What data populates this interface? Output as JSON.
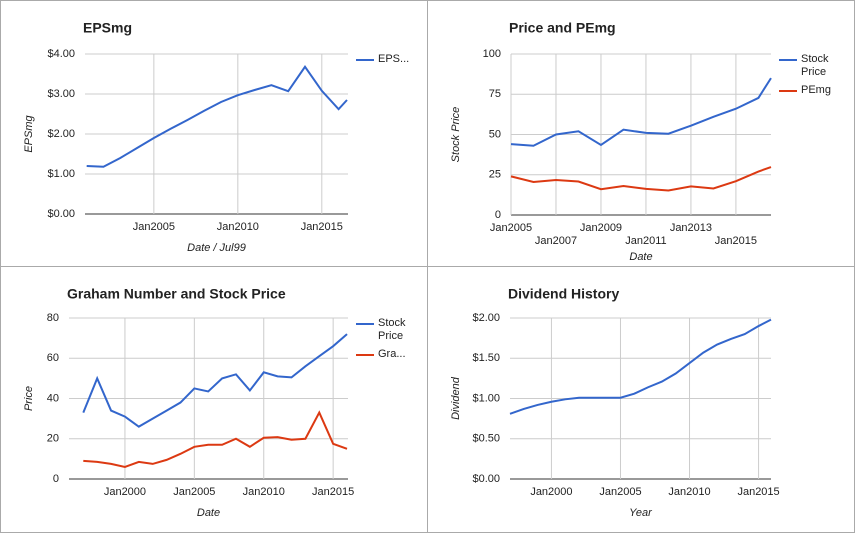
{
  "chart_data": [
    {
      "type": "line",
      "title": "EPSmg",
      "x_label": "Date / Jul99",
      "y_label": "EPSmg",
      "x": [
        2001,
        2002,
        2003,
        2004,
        2005,
        2006,
        2007,
        2008,
        2009,
        2010,
        2011,
        2012,
        2013,
        2014,
        2015,
        2016,
        2016.5
      ],
      "series": [
        {
          "name": "EPS...",
          "color": "#3366cc",
          "values": [
            1.2,
            1.18,
            1.4,
            1.65,
            1.9,
            2.13,
            2.35,
            2.58,
            2.8,
            2.97,
            3.1,
            3.22,
            3.07,
            3.68,
            3.08,
            2.62,
            2.85
          ]
        }
      ],
      "xlim": [
        2000.9,
        2016.56
      ],
      "ylim": [
        0,
        4
      ],
      "xticks": [
        {
          "value": 2005,
          "label": "Jan2005"
        },
        {
          "value": 2010,
          "label": "Jan2010"
        },
        {
          "value": 2015,
          "label": "Jan2015"
        }
      ],
      "yticks": [
        {
          "value": 0,
          "label": "$0.00"
        },
        {
          "value": 1,
          "label": "$1.00"
        },
        {
          "value": 2,
          "label": "$2.00"
        },
        {
          "value": 3,
          "label": "$3.00"
        },
        {
          "value": 4,
          "label": "$4.00"
        }
      ],
      "grid": true,
      "legend": "right"
    },
    {
      "type": "line",
      "title": "Price and PEmg",
      "x_label": "Date",
      "y_label": "Stock Price",
      "x": [
        2005,
        2006,
        2007,
        2008,
        2009,
        2010,
        2011,
        2012,
        2013,
        2014,
        2015,
        2016,
        2016.56
      ],
      "series": [
        {
          "name": "Stock Price",
          "color": "#3366cc",
          "values": [
            44,
            43,
            50,
            52,
            43.5,
            53,
            51,
            50.5,
            55.5,
            61,
            66,
            72.7,
            85
          ]
        },
        {
          "name": "PEmg",
          "color": "#dc3912",
          "values": [
            24,
            20.5,
            21.7,
            20.8,
            16,
            18,
            16.2,
            15.2,
            17.8,
            16.5,
            21,
            27,
            29.8
          ]
        }
      ],
      "xlim": [
        2005,
        2016.56
      ],
      "ylim": [
        0,
        100
      ],
      "xticks": [
        {
          "value": 2005,
          "label": "Jan2005"
        },
        {
          "value": 2007,
          "label": "Jan2007"
        },
        {
          "value": 2009,
          "label": "Jan2009"
        },
        {
          "value": 2011,
          "label": "Jan2011"
        },
        {
          "value": 2013,
          "label": "Jan2013"
        },
        {
          "value": 2015,
          "label": "Jan2015"
        }
      ],
      "yticks": [
        0,
        25,
        50,
        75,
        100
      ],
      "grid": true,
      "legend": "right"
    },
    {
      "type": "line",
      "title": "Graham Number and Stock Price",
      "x_label": "Date",
      "y_label": "Price",
      "x": [
        1997,
        1998,
        1999,
        2000,
        2001,
        2002,
        2003,
        2004,
        2005,
        2006,
        2007,
        2008,
        2009,
        2010,
        2011,
        2012,
        2013,
        2014,
        2015,
        2016
      ],
      "series": [
        {
          "name": "Stock Price",
          "color": "#3366cc",
          "values": [
            33,
            50,
            34,
            31,
            26,
            30,
            34,
            38,
            45,
            43.5,
            50,
            52,
            44,
            53,
            51,
            50.5,
            56,
            61,
            66,
            72
          ]
        },
        {
          "name": "Gra...",
          "color": "#dc3912",
          "values": [
            9,
            8.5,
            7.5,
            6,
            8.5,
            7.5,
            9.5,
            12.5,
            16,
            17,
            17,
            20,
            16,
            20.5,
            20.8,
            19.5,
            20,
            33,
            17.5,
            15
          ]
        }
      ],
      "xlim": [
        1995.97,
        2016.07
      ],
      "ylim": [
        0,
        80
      ],
      "xticks": [
        {
          "value": 2000,
          "label": "Jan2000"
        },
        {
          "value": 2005,
          "label": "Jan2005"
        },
        {
          "value": 2010,
          "label": "Jan2010"
        },
        {
          "value": 2015,
          "label": "Jan2015"
        }
      ],
      "yticks": [
        0,
        20,
        40,
        60,
        80
      ],
      "grid": true,
      "legend": "right"
    },
    {
      "type": "line",
      "title": "Dividend History",
      "x_label": "Year",
      "y_label": "Dividend",
      "x": [
        1997,
        1998,
        1999,
        2000,
        2001,
        2002,
        2003,
        2004,
        2005,
        2006,
        2007,
        2008,
        2009,
        2010,
        2011,
        2012,
        2013,
        2014,
        2015,
        2015.9
      ],
      "values": [
        0.81,
        0.87,
        0.92,
        0.96,
        0.99,
        1.01,
        1.01,
        1.01,
        1.01,
        1.06,
        1.14,
        1.21,
        1.31,
        1.44,
        1.57,
        1.67,
        1.74,
        1.8,
        1.9,
        1.98
      ],
      "color": "#3366cc",
      "xlim": [
        1997,
        2015.9
      ],
      "ylim": [
        0,
        2
      ],
      "xticks": [
        {
          "value": 2000,
          "label": "Jan2000"
        },
        {
          "value": 2005,
          "label": "Jan2005"
        },
        {
          "value": 2010,
          "label": "Jan2010"
        },
        {
          "value": 2015,
          "label": "Jan2015"
        }
      ],
      "yticks": [
        {
          "value": 0,
          "label": "$0.00"
        },
        {
          "value": 0.5,
          "label": "$0.50"
        },
        {
          "value": 1,
          "label": "$1.00"
        },
        {
          "value": 1.5,
          "label": "$1.50"
        },
        {
          "value": 2,
          "label": "$2.00"
        }
      ],
      "grid": true
    }
  ]
}
